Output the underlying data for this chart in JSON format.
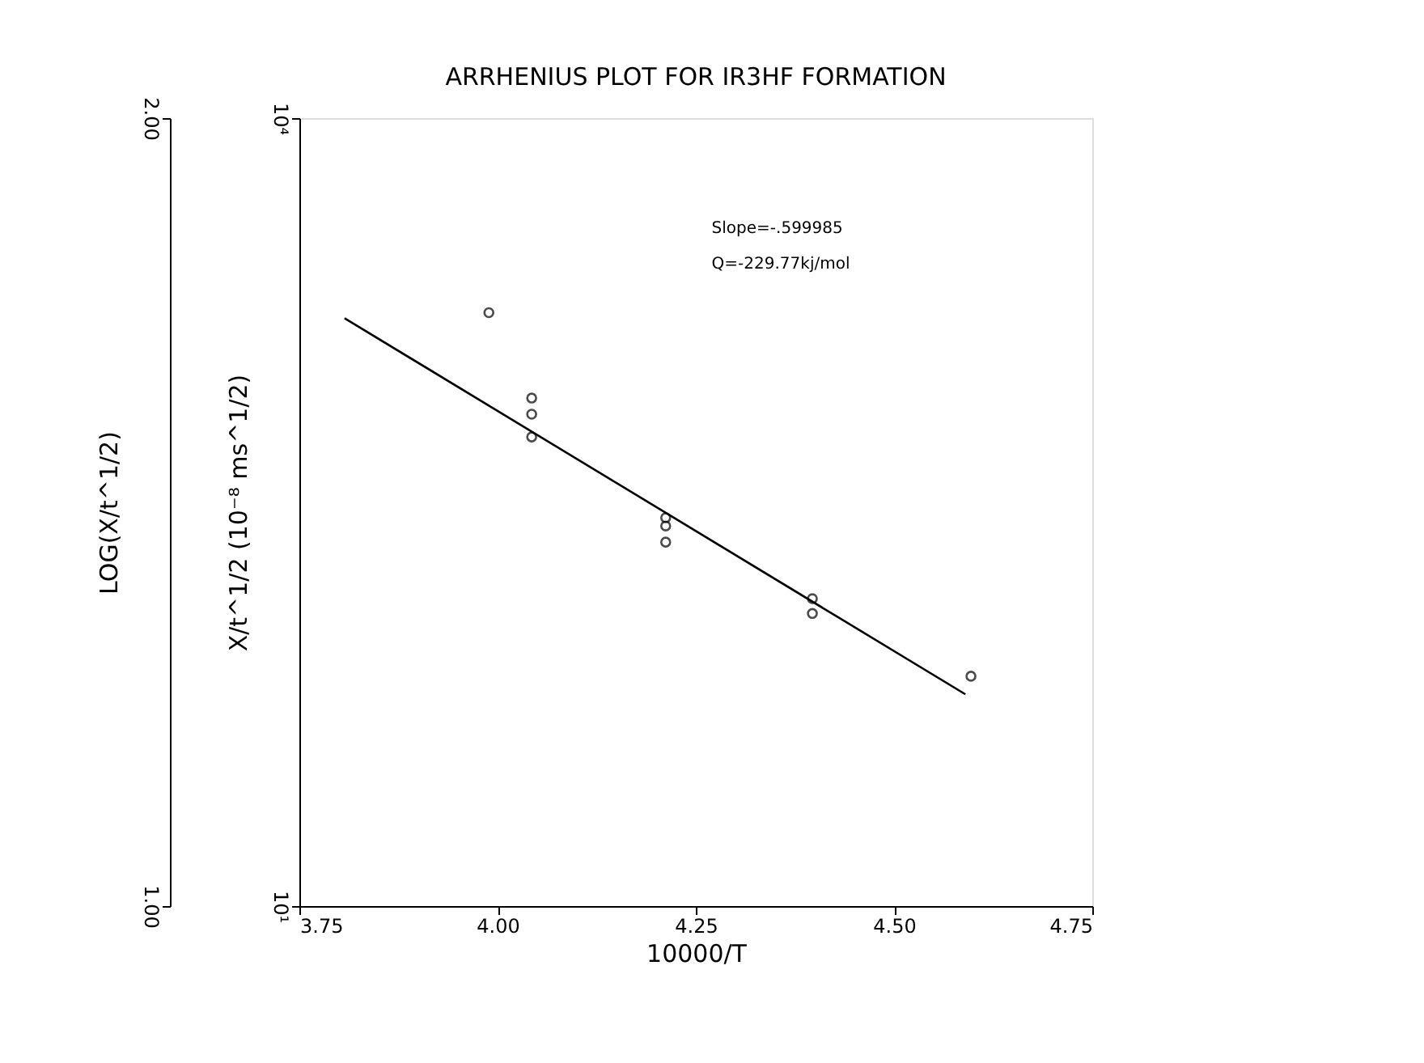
{
  "chart_data": {
    "type": "scatter",
    "title": "ARRHENIUS PLOT FOR IR3HF FORMATION",
    "xlabel": "10000/T",
    "ylabel": "X/t^1/2 (10⁻⁸ ms^1/2)",
    "y2label": "LOG(X/t^1/2)",
    "x": [
      3.989,
      4.043,
      4.043,
      4.043,
      4.212,
      4.212,
      4.212,
      4.397,
      4.397,
      4.597
    ],
    "series": [
      {
        "color": "#000000",
        "marker": "circle",
        "values": [
          1816,
          859,
          746,
          611,
          301,
          280,
          243,
          148,
          130,
          75
        ]
      },
      {
        "type": "line",
        "color": "#000000",
        "line_style": "solid",
        "marker": "none",
        "x": [
          3.807,
          4.59
        ],
        "values": [
          1730,
          64
        ]
      }
    ],
    "log": "y",
    "ylim": [
      10,
      10000
    ],
    "yticks": [
      {
        "value": 10,
        "label": "10¹"
      },
      {
        "value": 10000,
        "label": "10⁴"
      }
    ],
    "y2lim": [
      1.0,
      2.0
    ],
    "y2ticks": [
      {
        "value": 1.0,
        "label": "1.00"
      },
      {
        "value": 2.0,
        "label": "2.00"
      }
    ],
    "xlim": [
      3.75,
      4.75
    ],
    "xticks": [
      {
        "value": 3.75,
        "label": "3.75"
      },
      {
        "value": 4.0,
        "label": "4.00"
      },
      {
        "value": 4.25,
        "label": "4.25"
      },
      {
        "value": 4.5,
        "label": "4.50"
      },
      {
        "value": 4.75,
        "label": "4.75"
      }
    ],
    "annotations": [
      "Slope=-.599985",
      "Q=-229.77kj/mol"
    ],
    "grid": false
  }
}
